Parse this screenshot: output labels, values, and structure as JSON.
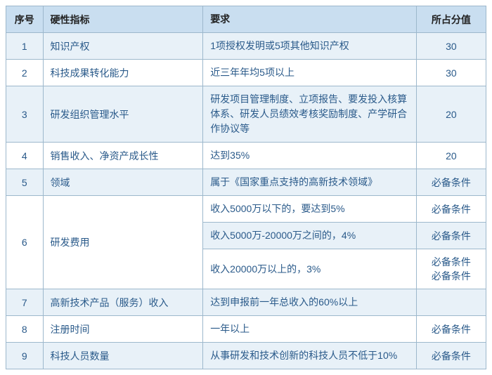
{
  "headers": {
    "seq": "序号",
    "indicator": "硬性指标",
    "requirement": "要求",
    "score": "所占分值"
  },
  "rows": [
    {
      "seq": "1",
      "indicator": "知识产权",
      "requirement": "1项授权发明或5项其他知识产权",
      "score": "30"
    },
    {
      "seq": "2",
      "indicator": "科技成果转化能力",
      "requirement": "近三年年均5项以上",
      "score": "30"
    },
    {
      "seq": "3",
      "indicator": "研发组织管理水平",
      "requirement": "研发项目管理制度、立项报告、要发投入核算体系、研发人员绩效考核奖励制度、产学研合作协议等",
      "score": "20"
    },
    {
      "seq": "4",
      "indicator": "销售收入、净资产成长性",
      "requirement": "达到35%",
      "score": "20"
    },
    {
      "seq": "5",
      "indicator": "领域",
      "requirement": "属于《国家重点支持的高新技术领域》",
      "score": "必备条件"
    },
    {
      "seq": "6",
      "indicator": "研发费用",
      "requirement": "",
      "score": ""
    },
    {
      "seq": "",
      "indicator": "",
      "requirement": "收入5000万以下的，要达到5%",
      "score": "必备条件"
    },
    {
      "seq": "",
      "indicator": "",
      "requirement": "收入5000万-20000万之间的，4%",
      "score": "必备条件"
    },
    {
      "seq": "",
      "indicator": "",
      "requirement": "收入20000万以上的，3%",
      "score": "必备条件\n必备条件"
    },
    {
      "seq": "7",
      "indicator": "高新技术产品（服务）收入",
      "requirement": "达到申报前一年总收入的60%以上",
      "score": ""
    },
    {
      "seq": "8",
      "indicator": "注册时间",
      "requirement": "一年以上",
      "score": "必备条件"
    },
    {
      "seq": "9",
      "indicator": "科技人员数量",
      "requirement": "从事研发和技术创新的科技人员不低于10%",
      "score": "必备条件"
    }
  ],
  "colors": {
    "border": "#9db8cc",
    "header_bg": "#c9def0",
    "odd_row": "#e8f1f8",
    "even_row": "#ffffff",
    "text": "#2a5a8a"
  }
}
